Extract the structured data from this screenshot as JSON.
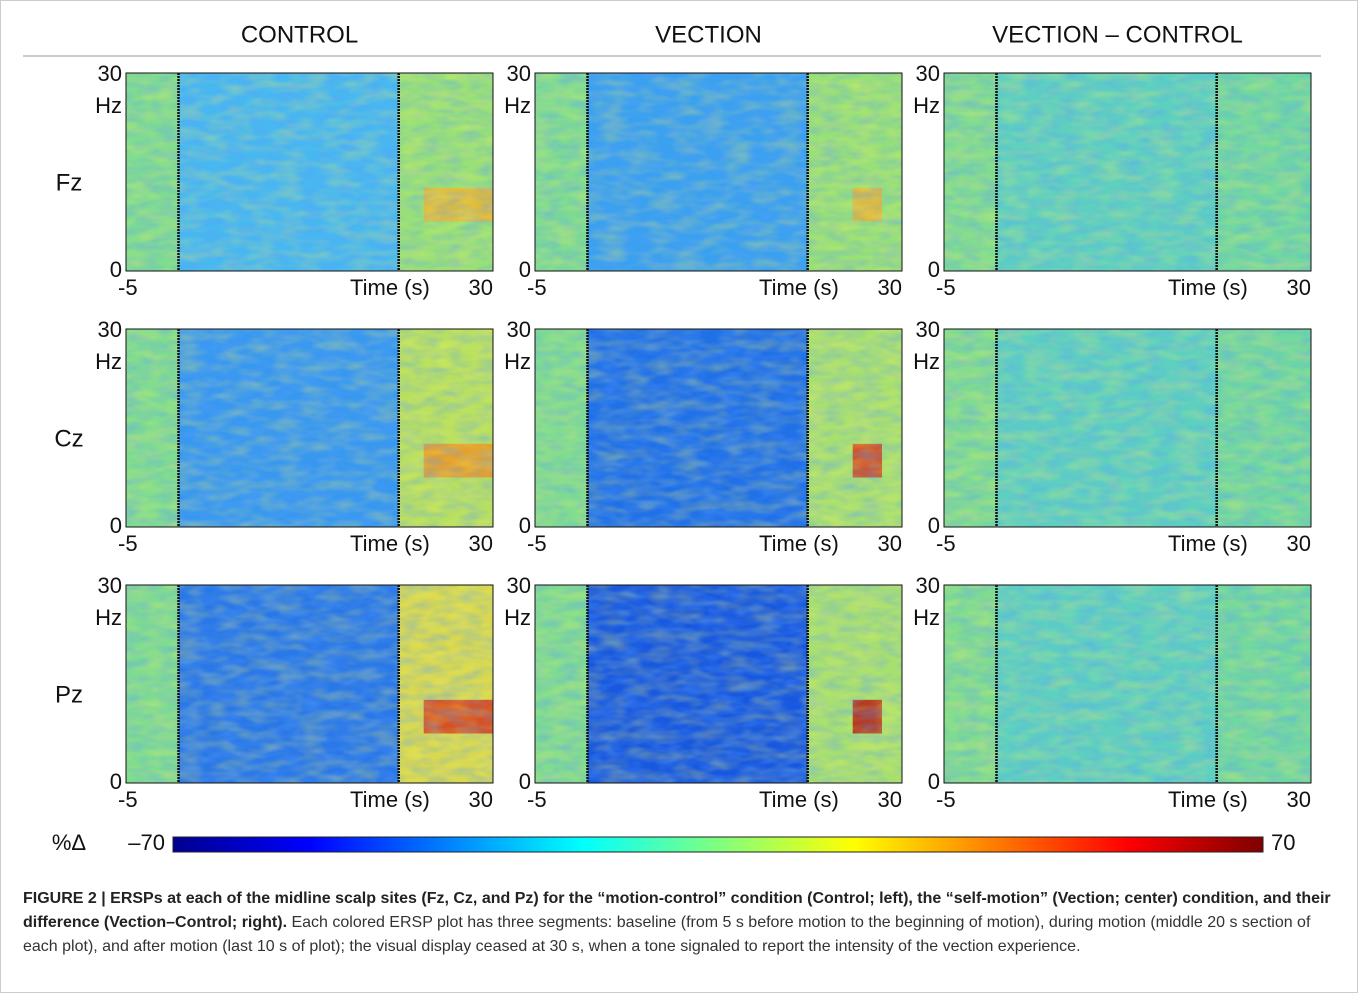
{
  "figure": {
    "columns": [
      "CONTROL",
      "VECTION",
      "VECTION – CONTROL"
    ],
    "rows": [
      "Fz",
      "Cz",
      "Pz"
    ],
    "y_axis": {
      "ticks": [
        0,
        30
      ],
      "unit": "Hz"
    },
    "x_axis": {
      "ticks": [
        -5,
        30
      ],
      "label": "Time (s)"
    },
    "colorbar": {
      "label": "%Δ",
      "min": {
        "value": -70,
        "label": "–70"
      },
      "max": 70
    }
  },
  "caption": {
    "bold": "FIGURE 2 | ERSPs at each of the midline scalp sites (Fz, Cz, and Pz) for the “motion-control” condition (Control; left), the “self-motion” (Vection; center) condition, and their difference (Vection–Control; right).",
    "text": "Each colored ERSP plot has three segments: baseline (from 5 s before motion to the beginning of motion), during motion (middle 20 s section of each plot), and after motion (last 10 s of plot); the visual display ceased at 30 s, when a tone signaled to report the intensity of the vection experience."
  }
}
